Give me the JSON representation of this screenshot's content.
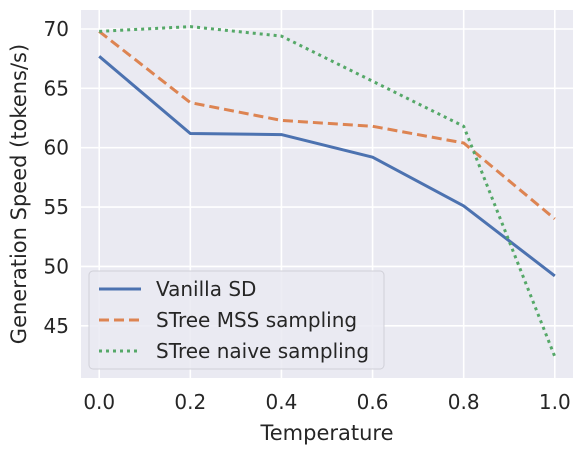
{
  "chart_data": {
    "type": "line",
    "xlabel": "Temperature",
    "ylabel": "Generation Speed (tokens/s)",
    "x": [
      0.0,
      0.2,
      0.4,
      0.6,
      0.8,
      1.0
    ],
    "xticks": [
      0.0,
      0.2,
      0.4,
      0.6,
      0.8,
      1.0
    ],
    "xtick_labels": [
      "0.0",
      "0.2",
      "0.4",
      "0.6",
      "0.8",
      "1.0"
    ],
    "yticks": [
      45,
      50,
      55,
      60,
      65,
      70
    ],
    "ytick_labels": [
      "45",
      "50",
      "55",
      "60",
      "65",
      "70"
    ],
    "xlim": [
      -0.04,
      1.04
    ],
    "ylim": [
      40.6,
      71.6
    ],
    "grid": true,
    "legend_position": "lower-left",
    "series": [
      {
        "name": "Vanilla SD",
        "style": "solid",
        "color": "#4c72b0",
        "values": [
          67.7,
          61.2,
          61.1,
          59.2,
          55.1,
          49.2
        ]
      },
      {
        "name": "STree MSS sampling",
        "style": "dashed",
        "color": "#dd8452",
        "values": [
          69.8,
          63.8,
          62.3,
          61.8,
          60.4,
          54.0
        ]
      },
      {
        "name": "STree naive sampling",
        "style": "dotted",
        "color": "#55a868",
        "values": [
          69.8,
          70.2,
          69.4,
          65.6,
          61.8,
          42.4
        ]
      }
    ],
    "background_color": "#eaeaf2",
    "grid_color": "#ffffff"
  }
}
